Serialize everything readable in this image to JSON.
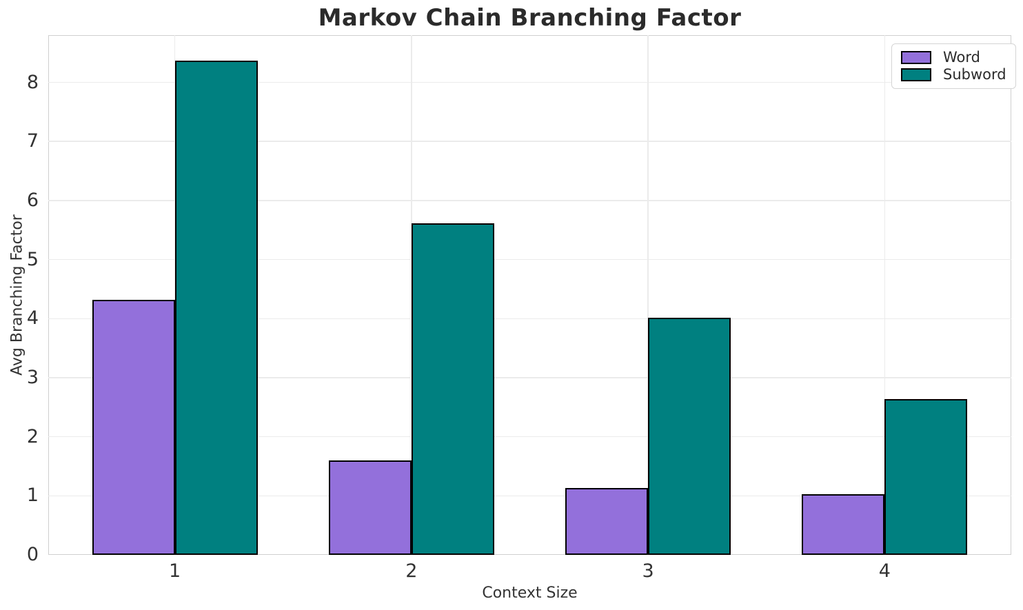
{
  "chart_data": {
    "type": "bar",
    "title": "Markov Chain Branching Factor",
    "xlabel": "Context Size",
    "ylabel": "Avg Branching Factor",
    "categories": [
      "1",
      "2",
      "3",
      "4"
    ],
    "series": [
      {
        "name": "Word",
        "color": "#9370DB",
        "values": [
          4.32,
          1.6,
          1.13,
          1.03
        ]
      },
      {
        "name": "Subword",
        "color": "#008080",
        "values": [
          8.37,
          5.61,
          4.02,
          2.64
        ]
      }
    ],
    "ylim": [
      0,
      8.8
    ],
    "yticks": [
      0,
      1,
      2,
      3,
      4,
      5,
      6,
      7,
      8
    ],
    "xlim": [
      0.465,
      4.535
    ],
    "bar_width": 0.35,
    "grid": true,
    "legend_position": "top-right",
    "colors": {
      "bar_edge": "#000000",
      "grid": "#ebebeb",
      "spine": "#cfcfcf",
      "tick_text": "#333333",
      "title_text": "#2b2b2b",
      "background": "#ffffff"
    }
  }
}
